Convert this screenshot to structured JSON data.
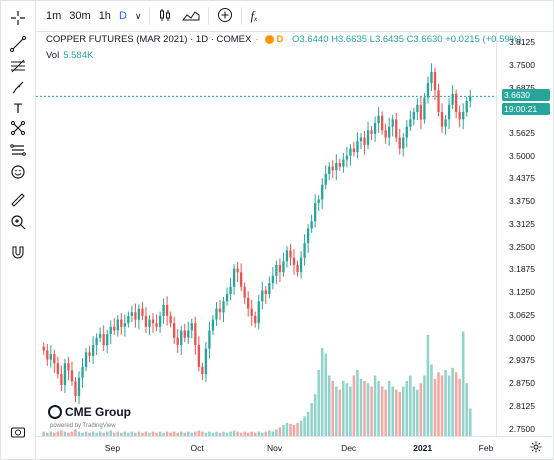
{
  "toolbar": {
    "intervals": [
      "1m",
      "30m",
      "1h"
    ],
    "selected_interval": "D",
    "chevron": "∨",
    "fx": "fₓ"
  },
  "legend": {
    "symbol": "COPPER FUTURES (MAR 2021) · 1D · COMEX",
    "badge": "D",
    "ohlc": "O3.6440 H3.6635 L3.6435 C3.6630 +0.0215 (+0.59%)",
    "volume_label": "Vol",
    "volume_value": "5.584K"
  },
  "price_tag": "3.6630",
  "time_tag": "19:00:21",
  "logo": {
    "name": "CME Group",
    "sub": "powered by TradingView"
  },
  "colors": {
    "up": "#26a69a",
    "down": "#ef5350",
    "vol_up": "#8fd3cb",
    "vol_down": "#f4a6a4",
    "accent": "#2962ff"
  },
  "chart_data": {
    "type": "candlestick",
    "title": "COPPER FUTURES (MAR 2021) · 1D · COMEX",
    "ylim": [
      2.73,
      3.84
    ],
    "yticks": [
      "3.8125",
      "3.7500",
      "3.6875",
      "3.6250",
      "3.5625",
      "3.5000",
      "3.4375",
      "3.3750",
      "3.3125",
      "3.2500",
      "3.1875",
      "3.1250",
      "3.0625",
      "3.0000",
      "2.9375",
      "2.8750",
      "2.8125",
      "2.7500"
    ],
    "xticks": [
      "Sep",
      "Oct",
      "Nov",
      "Dec",
      "2021",
      "Feb"
    ],
    "closes": [
      2.965,
      2.94,
      2.955,
      2.93,
      2.9,
      2.87,
      2.93,
      2.91,
      2.88,
      2.84,
      2.89,
      2.92,
      2.96,
      2.95,
      2.98,
      3.0,
      3.01,
      2.98,
      3.01,
      3.03,
      3.02,
      3.05,
      3.03,
      3.04,
      3.06,
      3.07,
      3.05,
      3.08,
      3.06,
      3.03,
      3.05,
      3.04,
      3.03,
      3.06,
      3.09,
      3.06,
      3.04,
      3.0,
      2.98,
      3.02,
      3.0,
      3.02,
      3.04,
      2.98,
      2.92,
      2.9,
      2.97,
      3.02,
      3.05,
      3.08,
      3.07,
      3.1,
      3.12,
      3.14,
      3.19,
      3.18,
      3.14,
      3.11,
      3.08,
      3.06,
      3.04,
      3.1,
      3.13,
      3.12,
      3.15,
      3.17,
      3.2,
      3.18,
      3.21,
      3.24,
      3.22,
      3.2,
      3.18,
      3.22,
      3.26,
      3.3,
      3.32,
      3.37,
      3.38,
      3.42,
      3.45,
      3.47,
      3.46,
      3.48,
      3.47,
      3.49,
      3.5,
      3.52,
      3.51,
      3.54,
      3.55,
      3.53,
      3.57,
      3.56,
      3.59,
      3.61,
      3.57,
      3.55,
      3.58,
      3.6,
      3.55,
      3.52,
      3.55,
      3.58,
      3.6,
      3.62,
      3.64,
      3.6,
      3.66,
      3.7,
      3.73,
      3.68,
      3.62,
      3.58,
      3.6,
      3.64,
      3.67,
      3.62,
      3.6,
      3.62,
      3.65,
      3.663
    ],
    "volumes": [
      0.04,
      0.03,
      0.04,
      0.03,
      0.04,
      0.05,
      0.04,
      0.03,
      0.04,
      0.06,
      0.04,
      0.03,
      0.04,
      0.03,
      0.04,
      0.03,
      0.04,
      0.03,
      0.04,
      0.05,
      0.03,
      0.04,
      0.03,
      0.04,
      0.03,
      0.04,
      0.03,
      0.04,
      0.03,
      0.04,
      0.03,
      0.04,
      0.03,
      0.04,
      0.03,
      0.04,
      0.03,
      0.04,
      0.03,
      0.04,
      0.03,
      0.04,
      0.03,
      0.04,
      0.05,
      0.04,
      0.03,
      0.04,
      0.03,
      0.04,
      0.03,
      0.04,
      0.03,
      0.04,
      0.05,
      0.04,
      0.03,
      0.04,
      0.03,
      0.04,
      0.03,
      0.04,
      0.03,
      0.04,
      0.05,
      0.04,
      0.06,
      0.08,
      0.1,
      0.12,
      0.11,
      0.1,
      0.12,
      0.14,
      0.18,
      0.22,
      0.3,
      0.38,
      0.6,
      0.8,
      0.75,
      0.55,
      0.5,
      0.45,
      0.42,
      0.5,
      0.48,
      0.45,
      0.55,
      0.6,
      0.52,
      0.5,
      0.48,
      0.45,
      0.55,
      0.5,
      0.45,
      0.42,
      0.5,
      0.45,
      0.42,
      0.4,
      0.45,
      0.5,
      0.55,
      0.45,
      0.42,
      0.48,
      0.55,
      0.92,
      0.65,
      0.52,
      0.58,
      0.55,
      0.6,
      0.55,
      0.62,
      0.58,
      0.52,
      0.95,
      0.48,
      0.25
    ]
  }
}
